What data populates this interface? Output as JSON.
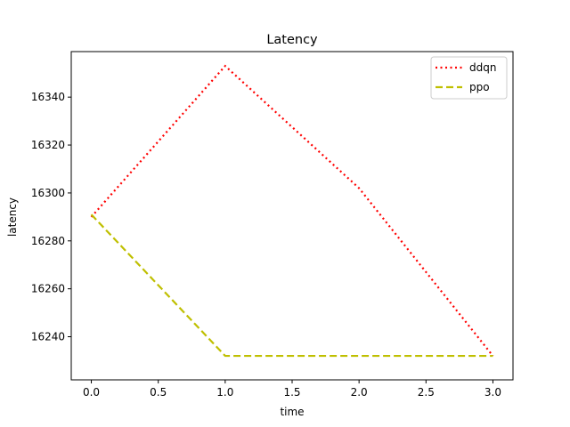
{
  "chart_data": {
    "type": "line",
    "title": "Latency",
    "xlabel": "time",
    "ylabel": "latency",
    "x": [
      0,
      1,
      2,
      3
    ],
    "xlim": [
      -0.15,
      3.15
    ],
    "ylim": [
      16222,
      16359
    ],
    "xticks": [
      0.0,
      0.5,
      1.0,
      1.5,
      2.0,
      2.5,
      3.0
    ],
    "xtick_labels": [
      "0.0",
      "0.5",
      "1.0",
      "1.5",
      "2.0",
      "2.5",
      "3.0"
    ],
    "yticks": [
      16240,
      16260,
      16280,
      16300,
      16320,
      16340
    ],
    "ytick_labels": [
      "16240",
      "16260",
      "16280",
      "16300",
      "16320",
      "16340"
    ],
    "grid": false,
    "legend_position": "top-right",
    "series": [
      {
        "name": "ddqn",
        "values": [
          16290,
          16353,
          16302,
          16232
        ],
        "color": "#ff0000",
        "style": "dotted"
      },
      {
        "name": "ppo",
        "values": [
          16291,
          16232,
          16232,
          16232
        ],
        "color": "#bfbf00",
        "style": "dashed"
      }
    ]
  }
}
